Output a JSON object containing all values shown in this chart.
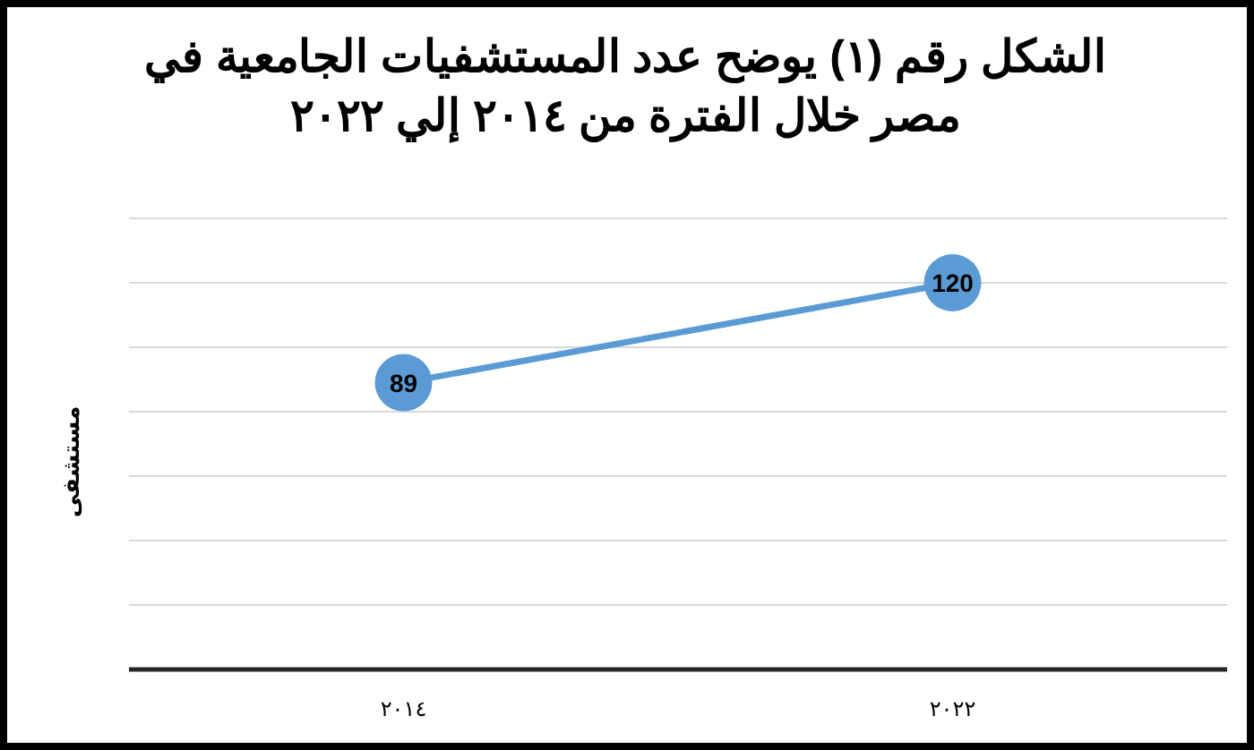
{
  "chart_data": {
    "type": "line",
    "title": "الشكل رقم (١) يوضح عدد المستشفيات الجامعية في مصر خلال الفترة من ٢٠١٤ إلي ٢٠٢٢",
    "ylabel": "مستشفى",
    "categories": [
      "٢٠١٤",
      "٢٠٢٢"
    ],
    "series": [
      {
        "color": "#5b9bd5",
        "values": [
          89,
          120
        ]
      }
    ],
    "ylim": [
      0,
      140
    ],
    "yticks": [
      {
        "value": 0,
        "label": null
      },
      {
        "value": 20,
        "label": null
      },
      {
        "value": 40,
        "label": null
      },
      {
        "value": 60,
        "label": null
      },
      {
        "value": 80,
        "label": null
      },
      {
        "value": 100,
        "label": null
      },
      {
        "value": 120,
        "label": null
      },
      {
        "value": 140,
        "label": null
      }
    ],
    "grid": "y",
    "marker": "circle",
    "line_style": "solid",
    "data_labels": true,
    "tick_labels": "x"
  }
}
